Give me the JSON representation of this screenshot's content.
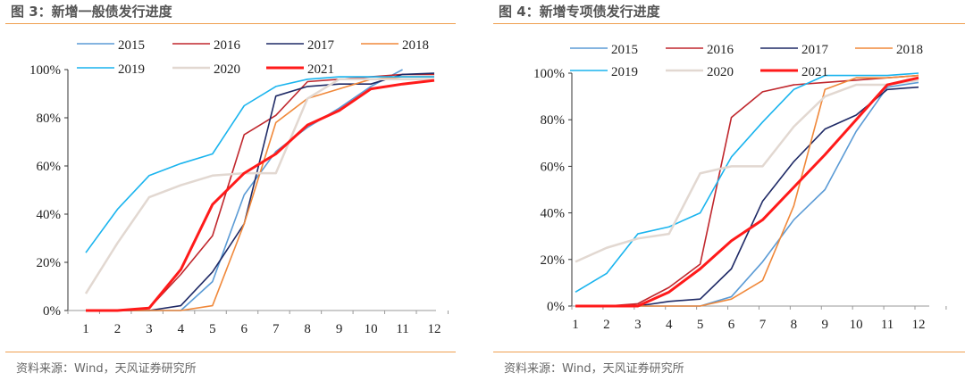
{
  "colors": {
    "2015": "#5b9bd5",
    "2016": "#c0272d",
    "2017": "#1f2a66",
    "2018": "#f0883a",
    "2019": "#1ab4ee",
    "2020": "#e2d8d1",
    "2021": "#ff1a1a"
  },
  "chart_data": [
    {
      "type": "line",
      "title": "图 3：新增一般债发行进度",
      "source": "资料来源：Wind，天风证券研究所",
      "categories": [
        "1",
        "2",
        "3",
        "4",
        "5",
        "6",
        "7",
        "8",
        "9",
        "10",
        "11",
        "12"
      ],
      "yticks": [
        "0%",
        "20%",
        "40%",
        "60%",
        "80%",
        "100%"
      ],
      "ylim": [
        0,
        100
      ],
      "legend": "top",
      "series": [
        {
          "name": "2015",
          "values": [
            0,
            0,
            0,
            0,
            12,
            48,
            66,
            76,
            84,
            93,
            100,
            null
          ]
        },
        {
          "name": "2016",
          "values": [
            0,
            0,
            1,
            15,
            31,
            73,
            81,
            95,
            96,
            97,
            98,
            98
          ]
        },
        {
          "name": "2017",
          "values": [
            0,
            0,
            0,
            2,
            16,
            36,
            89,
            93,
            94,
            94,
            98,
            98.5
          ]
        },
        {
          "name": "2018",
          "values": [
            0,
            0,
            0,
            0,
            2,
            36,
            78,
            88,
            92,
            96,
            97,
            97
          ]
        },
        {
          "name": "2019",
          "values": [
            24,
            42,
            56,
            61,
            65,
            85,
            93,
            96,
            97,
            97,
            97,
            97
          ]
        },
        {
          "name": "2020",
          "values": [
            7,
            28,
            47,
            52,
            56,
            57,
            57,
            88,
            96,
            96,
            96,
            96
          ]
        },
        {
          "name": "2021",
          "values": [
            0,
            0,
            1,
            17,
            44,
            57,
            65,
            77,
            83,
            92,
            94,
            95.5
          ]
        }
      ]
    },
    {
      "type": "line",
      "title": "图 4：新增专项债发行进度",
      "source": "资料来源：Wind，天风证券研究所",
      "categories": [
        "1",
        "2",
        "3",
        "4",
        "5",
        "6",
        "7",
        "8",
        "9",
        "10",
        "11",
        "12"
      ],
      "yticks": [
        "0%",
        "20%",
        "40%",
        "60%",
        "80%",
        "100%"
      ],
      "ylim": [
        0,
        100
      ],
      "legend": "top",
      "series": [
        {
          "name": "2015",
          "values": [
            0,
            0,
            0,
            0,
            0,
            4,
            19,
            37,
            50,
            75,
            94,
            96
          ]
        },
        {
          "name": "2016",
          "values": [
            0,
            0,
            1,
            8,
            18,
            81,
            92,
            95,
            96,
            97,
            98,
            99
          ]
        },
        {
          "name": "2017",
          "values": [
            0,
            0,
            0,
            2,
            3,
            16,
            45,
            62,
            76,
            82,
            93,
            94
          ]
        },
        {
          "name": "2018",
          "values": [
            0,
            0,
            0,
            0,
            0,
            3,
            11,
            43,
            93,
            98,
            98,
            99
          ]
        },
        {
          "name": "2019",
          "values": [
            6,
            14,
            31,
            34,
            40,
            64,
            79,
            93,
            99,
            99,
            99,
            100
          ]
        },
        {
          "name": "2020",
          "values": [
            19,
            25,
            29,
            31,
            57,
            60,
            60,
            77,
            90,
            95,
            95,
            97
          ]
        },
        {
          "name": "2021",
          "values": [
            0,
            0,
            0,
            6,
            16,
            28,
            37,
            51,
            65,
            80,
            95,
            98
          ]
        }
      ]
    }
  ]
}
